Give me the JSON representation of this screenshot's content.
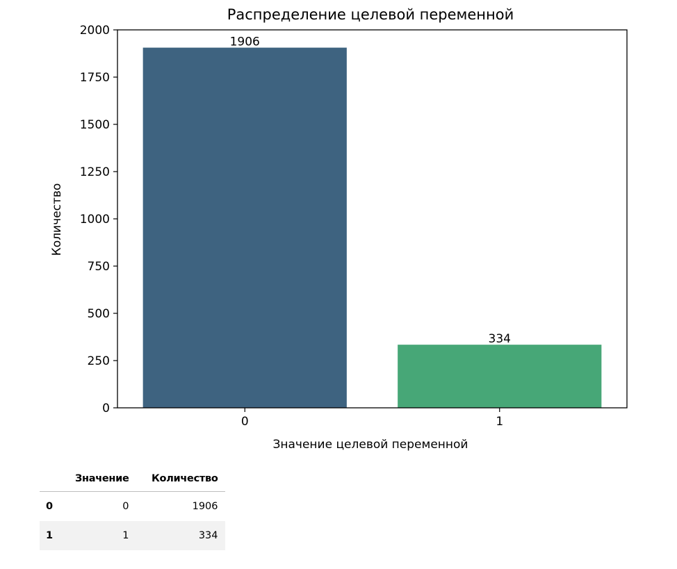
{
  "chart_data": {
    "type": "bar",
    "title": "Распределение целевой переменной",
    "xlabel": "Значение целевой переменной",
    "ylabel": "Количество",
    "categories": [
      "0",
      "1"
    ],
    "values": [
      1906,
      334
    ],
    "data_labels": [
      "1906",
      "334"
    ],
    "bar_colors": [
      "#3e6380",
      "#47a777"
    ],
    "ylim": [
      0,
      2000
    ],
    "yticks": [
      "0",
      "250",
      "500",
      "750",
      "1000",
      "1250",
      "1500",
      "1750",
      "2000"
    ],
    "grid": false,
    "legend": "none"
  },
  "table": {
    "headers": [
      "",
      "Значение",
      "Количество"
    ],
    "rows": [
      {
        "index": "0",
        "value": "0",
        "count": "1906"
      },
      {
        "index": "1",
        "value": "1",
        "count": "334"
      }
    ]
  }
}
